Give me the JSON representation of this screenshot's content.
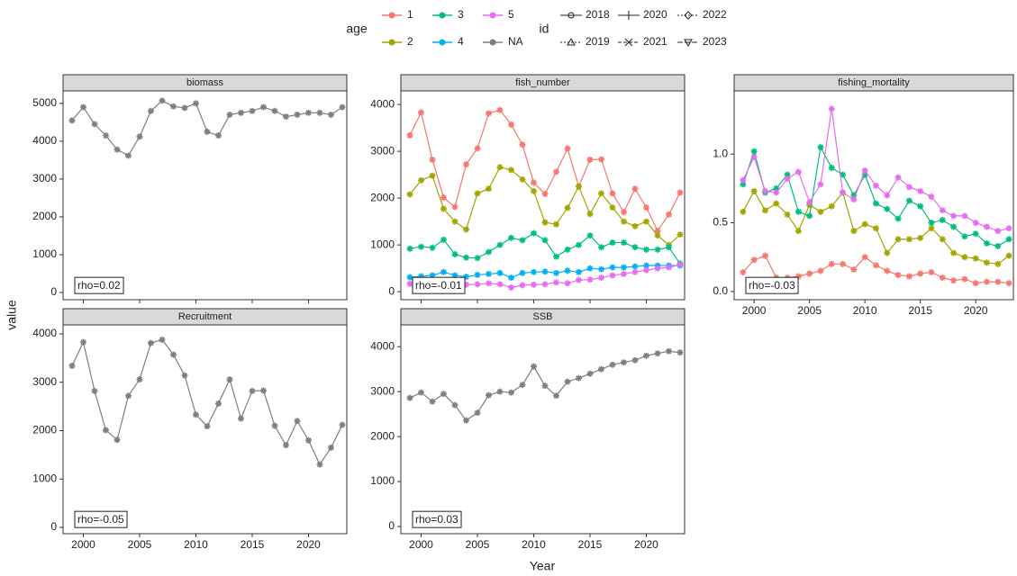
{
  "legend": {
    "age_title": "age",
    "ages": [
      {
        "name": "1",
        "color": "#F8766D"
      },
      {
        "name": "3",
        "color": "#00BF7D"
      },
      {
        "name": "5",
        "color": "#E76BF3"
      },
      {
        "name": "2",
        "color": "#A3A500"
      },
      {
        "name": "4",
        "color": "#00B0F6"
      },
      {
        "name": "NA",
        "color": "#7F7F7F"
      }
    ],
    "id_title": "id",
    "ids": [
      "2018",
      "2020",
      "2022",
      "2019",
      "2021",
      "2023"
    ]
  },
  "axis_labels": {
    "x": "Year",
    "y": "value"
  },
  "chart_data": [
    {
      "type": "line",
      "title": "biomass",
      "annotation": "rho=0.02",
      "x": [
        1999,
        2000,
        2001,
        2002,
        2003,
        2004,
        2005,
        2006,
        2007,
        2008,
        2009,
        2010,
        2011,
        2012,
        2013,
        2014,
        2015,
        2016,
        2017,
        2018,
        2019,
        2020,
        2021,
        2022,
        2023
      ],
      "xlim": [
        1998.2,
        2023.4
      ],
      "xticks": [
        2000,
        2005,
        2010,
        2015,
        2020
      ],
      "ylim": [
        -190,
        5330
      ],
      "yticks": [
        0,
        1000,
        2000,
        3000,
        4000,
        5000
      ],
      "series": [
        {
          "name": "NA",
          "color": "#7F7F7F",
          "values": [
            4550,
            4900,
            4450,
            4150,
            3780,
            3620,
            4120,
            4800,
            5070,
            4920,
            4880,
            5000,
            4250,
            4150,
            4700,
            4750,
            4800,
            4900,
            4800,
            4650,
            4700,
            4750,
            4750,
            4700,
            4900
          ]
        }
      ]
    },
    {
      "type": "line",
      "title": "fish_number",
      "annotation": "rho=-0.01",
      "x": [
        1999,
        2000,
        2001,
        2002,
        2003,
        2004,
        2005,
        2006,
        2007,
        2008,
        2009,
        2010,
        2011,
        2012,
        2013,
        2014,
        2015,
        2016,
        2017,
        2018,
        2019,
        2020,
        2021,
        2022,
        2023
      ],
      "xlim": [
        1998.2,
        2023.4
      ],
      "xticks": [
        2000,
        2005,
        2010,
        2015,
        2020
      ],
      "ylim": [
        -170,
        4290
      ],
      "yticks": [
        0,
        1000,
        2000,
        3000,
        4000
      ],
      "series": [
        {
          "name": "1",
          "color": "#F8766D",
          "values": [
            3340,
            3830,
            2820,
            2010,
            1810,
            2720,
            3060,
            3810,
            3880,
            3570,
            3140,
            2330,
            2090,
            2560,
            3060,
            2250,
            2820,
            2830,
            2100,
            1700,
            2200,
            1800,
            1300,
            1650,
            2120
          ]
        },
        {
          "name": "2",
          "color": "#A3A500",
          "values": [
            2080,
            2380,
            2480,
            1770,
            1500,
            1330,
            2100,
            2200,
            2660,
            2600,
            2400,
            2150,
            1480,
            1440,
            1790,
            2250,
            1660,
            2100,
            1800,
            1500,
            1400,
            1500,
            1200,
            1000,
            1220
          ]
        },
        {
          "name": "3",
          "color": "#00BF7D",
          "values": [
            920,
            960,
            940,
            1110,
            800,
            730,
            720,
            850,
            1000,
            1150,
            1100,
            1250,
            1100,
            750,
            900,
            1000,
            1200,
            950,
            1050,
            1050,
            950,
            900,
            900,
            950,
            600
          ]
        },
        {
          "name": "4",
          "color": "#00B0F6",
          "values": [
            310,
            330,
            350,
            420,
            350,
            320,
            360,
            380,
            400,
            300,
            400,
            420,
            430,
            400,
            450,
            420,
            500,
            480,
            520,
            520,
            540,
            560,
            560,
            560,
            560
          ]
        },
        {
          "name": "5",
          "color": "#E76BF3",
          "values": [
            170,
            200,
            200,
            220,
            180,
            150,
            160,
            180,
            160,
            90,
            140,
            150,
            160,
            200,
            180,
            250,
            260,
            300,
            350,
            380,
            420,
            460,
            500,
            520,
            580
          ]
        }
      ]
    },
    {
      "type": "line",
      "title": "fishing_mortality",
      "annotation": "rho=-0.03",
      "x": [
        1999,
        2000,
        2001,
        2002,
        2003,
        2004,
        2005,
        2006,
        2007,
        2008,
        2009,
        2010,
        2011,
        2012,
        2013,
        2014,
        2015,
        2016,
        2017,
        2018,
        2019,
        2020,
        2021,
        2022,
        2023
      ],
      "xlim": [
        1998.2,
        2023.4
      ],
      "xticks": [
        2000,
        2005,
        2010,
        2015,
        2020
      ],
      "ylim": [
        -0.06,
        1.46
      ],
      "yticks": [
        {
          "value": 0,
          "label": "0.0"
        },
        0.5,
        {
          "value": 1,
          "label": "1.0"
        }
      ],
      "series": [
        {
          "name": "1",
          "color": "#F8766D",
          "values": [
            0.14,
            0.23,
            0.26,
            0.1,
            0.1,
            0.11,
            0.13,
            0.15,
            0.2,
            0.2,
            0.16,
            0.25,
            0.19,
            0.15,
            0.12,
            0.11,
            0.13,
            0.14,
            0.1,
            0.08,
            0.09,
            0.06,
            0.07,
            0.07,
            0.06
          ]
        },
        {
          "name": "2",
          "color": "#A3A500",
          "values": [
            0.58,
            0.73,
            0.59,
            0.64,
            0.56,
            0.44,
            0.63,
            0.58,
            0.62,
            0.72,
            0.44,
            0.49,
            0.46,
            0.28,
            0.38,
            0.38,
            0.39,
            0.46,
            0.38,
            0.28,
            0.25,
            0.24,
            0.21,
            0.2,
            0.26
          ]
        },
        {
          "name": "3",
          "color": "#00BF7D",
          "values": [
            0.78,
            1.02,
            0.72,
            0.75,
            0.85,
            0.58,
            0.55,
            1.05,
            0.9,
            0.85,
            0.7,
            0.85,
            0.64,
            0.6,
            0.53,
            0.66,
            0.62,
            0.5,
            0.52,
            0.47,
            0.4,
            0.42,
            0.35,
            0.33,
            0.38
          ]
        },
        {
          "name": "5",
          "color": "#E76BF3",
          "values": [
            0.81,
            0.98,
            0.73,
            0.72,
            0.82,
            0.87,
            0.65,
            0.78,
            1.33,
            0.72,
            0.67,
            0.88,
            0.77,
            0.7,
            0.83,
            0.76,
            0.73,
            0.69,
            0.59,
            0.55,
            0.55,
            0.5,
            0.47,
            0.44,
            0.46
          ]
        }
      ]
    },
    {
      "type": "line",
      "title": "Recruitment",
      "annotation": "rho=-0.05",
      "x": [
        1999,
        2000,
        2001,
        2002,
        2003,
        2004,
        2005,
        2006,
        2007,
        2008,
        2009,
        2010,
        2011,
        2012,
        2013,
        2014,
        2015,
        2016,
        2017,
        2018,
        2019,
        2020,
        2021,
        2022,
        2023
      ],
      "xlim": [
        1998.2,
        2023.4
      ],
      "xticks": [
        2000,
        2005,
        2010,
        2015,
        2020
      ],
      "ylim": [
        -130,
        4186
      ],
      "yticks": [
        0,
        1000,
        2000,
        3000,
        4000
      ],
      "series": [
        {
          "name": "NA",
          "color": "#7F7F7F",
          "values": [
            3340,
            3830,
            2820,
            2010,
            1810,
            2720,
            3060,
            3810,
            3880,
            3570,
            3140,
            2330,
            2090,
            2560,
            3060,
            2250,
            2820,
            2830,
            2100,
            1700,
            2200,
            1800,
            1300,
            1650,
            2120
          ]
        }
      ]
    },
    {
      "type": "line",
      "title": "SSB",
      "annotation": "rho=0.03",
      "x": [
        1999,
        2000,
        2001,
        2002,
        2003,
        2004,
        2005,
        2006,
        2007,
        2008,
        2009,
        2010,
        2011,
        2012,
        2013,
        2014,
        2015,
        2016,
        2017,
        2018,
        2019,
        2020,
        2021,
        2022,
        2023
      ],
      "xlim": [
        1998.2,
        2023.4
      ],
      "xticks": [
        2000,
        2005,
        2010,
        2015,
        2020
      ],
      "ylim": [
        -160,
        4485
      ],
      "yticks": [
        0,
        1000,
        2000,
        3000,
        4000
      ],
      "series": [
        {
          "name": "NA",
          "color": "#7F7F7F",
          "values": [
            2860,
            2980,
            2780,
            2950,
            2700,
            2360,
            2530,
            2920,
            3000,
            2980,
            3150,
            3560,
            3130,
            2910,
            3220,
            3300,
            3400,
            3500,
            3600,
            3650,
            3700,
            3800,
            3850,
            3900,
            3870
          ]
        }
      ]
    }
  ]
}
